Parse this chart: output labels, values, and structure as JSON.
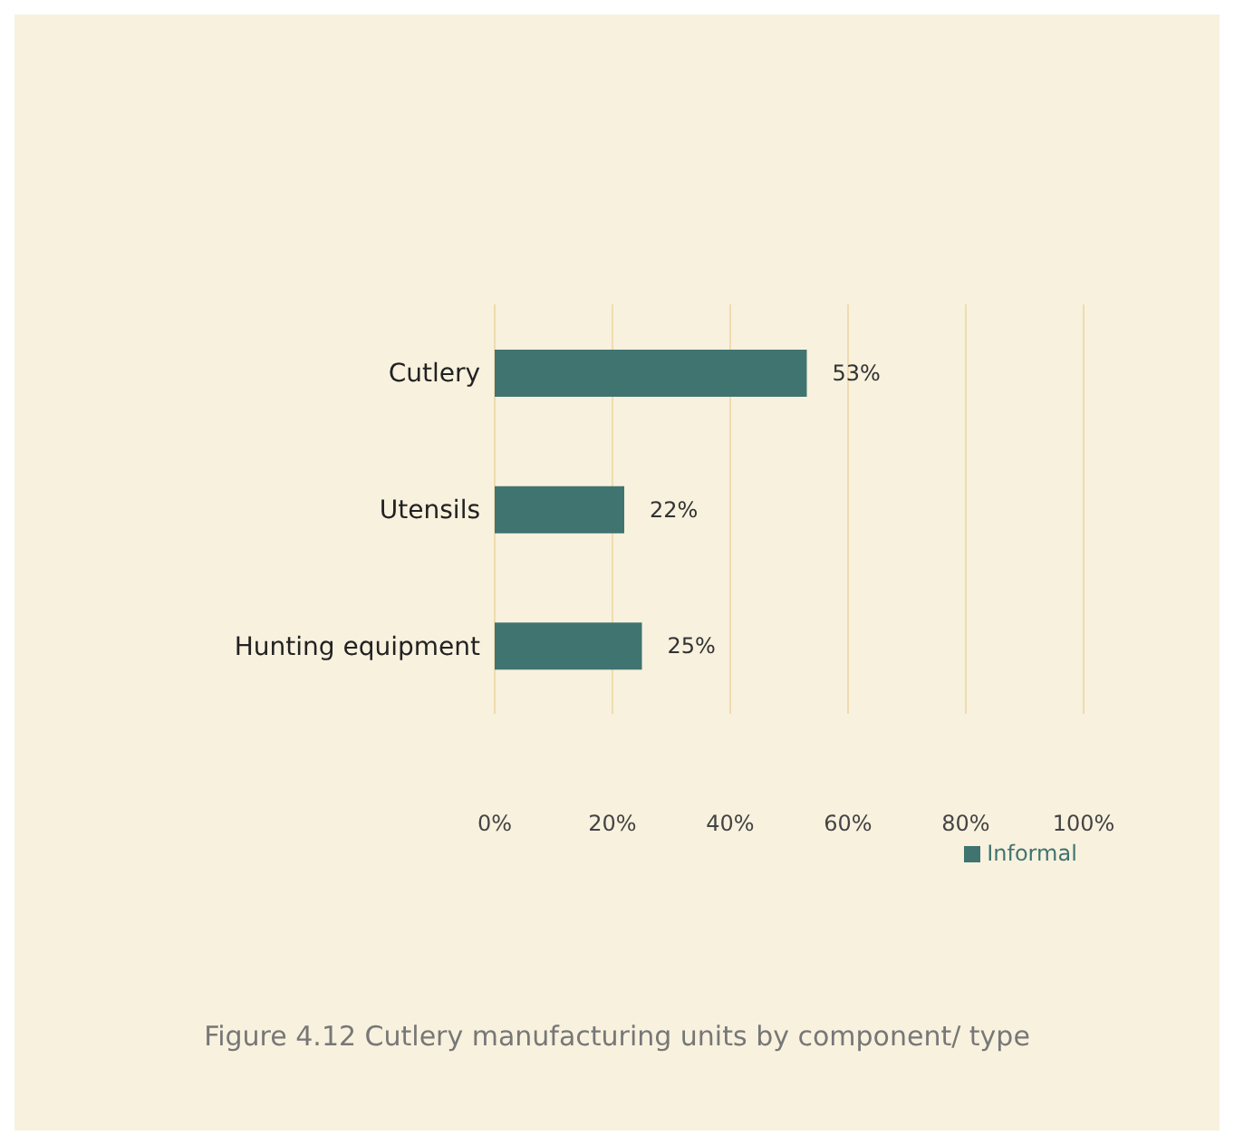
{
  "chart_data": {
    "type": "bar",
    "orientation": "horizontal",
    "categories": [
      "Cutlery",
      "Utensils",
      "Hunting equipment"
    ],
    "series": [
      {
        "name": "Informal",
        "color": "#3f7470",
        "values": [
          53,
          22,
          25
        ],
        "value_labels": [
          "53%",
          "22%",
          "25%"
        ]
      }
    ],
    "xlim": [
      0,
      100
    ],
    "xticks": [
      {
        "value": 0,
        "label": "0%"
      },
      {
        "value": 20,
        "label": "20%"
      },
      {
        "value": 40,
        "label": "40%"
      },
      {
        "value": 60,
        "label": "60%"
      },
      {
        "value": 80,
        "label": "80%"
      },
      {
        "value": 100,
        "label": "100%"
      }
    ],
    "grid": "x",
    "legend": "bottom",
    "annotations": [
      "Figure 4.12 Cutlery manufacturing units by component/ type"
    ]
  }
}
